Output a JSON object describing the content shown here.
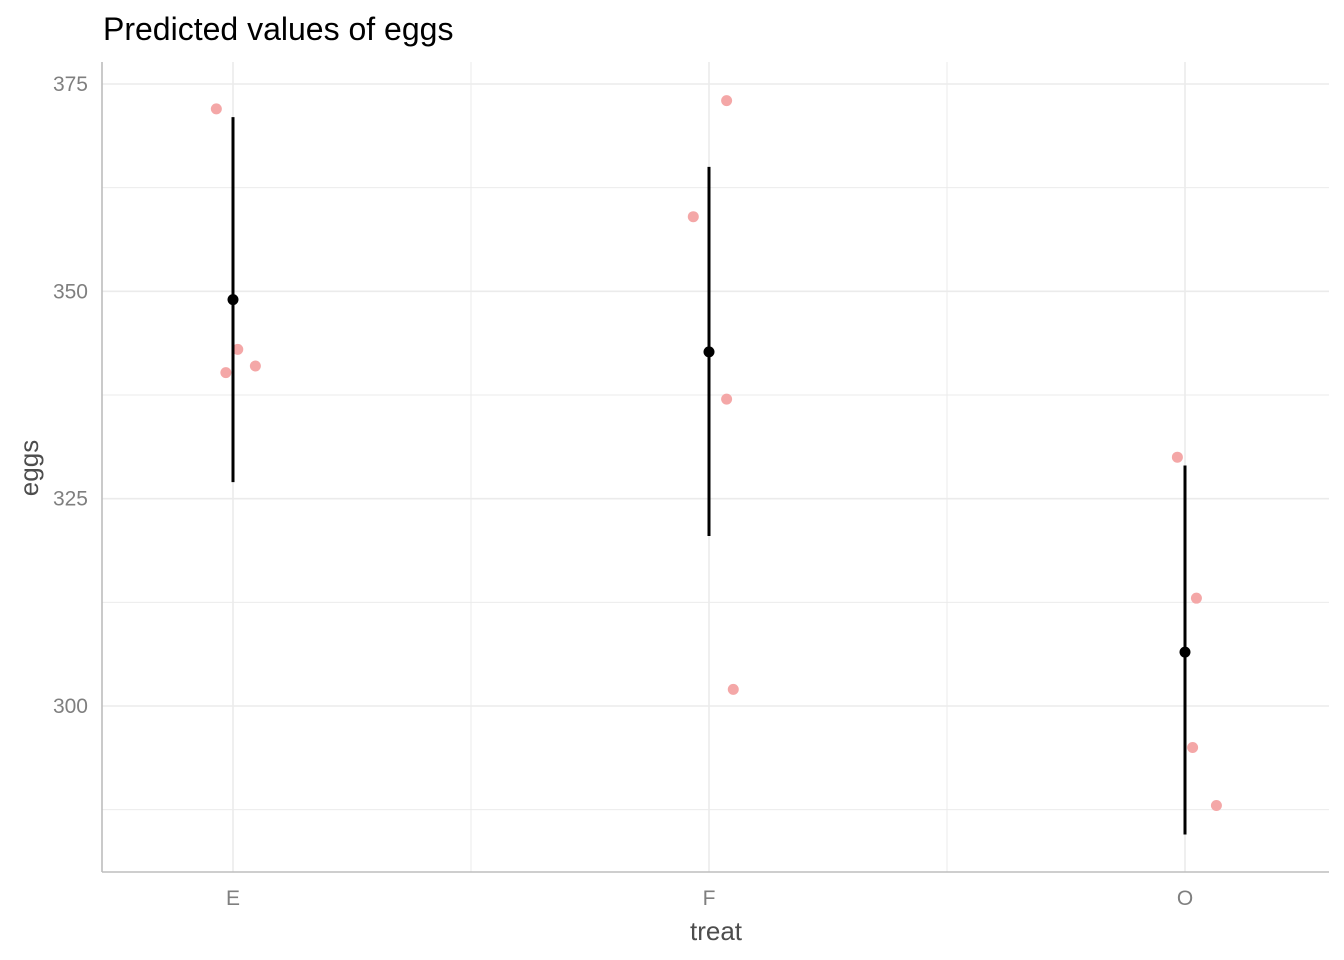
{
  "chart_data": {
    "type": "scatter",
    "title": "Predicted values of eggs",
    "xlabel": "treat",
    "ylabel": "eggs",
    "categories": [
      "E",
      "F",
      "O"
    ],
    "ylim": [
      283,
      378
    ],
    "yticks": [
      300,
      325,
      350,
      375
    ],
    "grid": true,
    "legend": "none",
    "predicted": [
      {
        "x": "E",
        "y": 349,
        "ci_low": 327,
        "ci_high": 371
      },
      {
        "x": "F",
        "y": 342.7,
        "ci_low": 320.5,
        "ci_high": 365
      },
      {
        "x": "O",
        "y": 306.5,
        "ci_low": 284.5,
        "ci_high": 329
      }
    ],
    "observed": [
      {
        "x": "E",
        "jitter": -0.035,
        "y": 372
      },
      {
        "x": "E",
        "jitter": 0.01,
        "y": 343
      },
      {
        "x": "E",
        "jitter": -0.015,
        "y": 340.2
      },
      {
        "x": "E",
        "jitter": 0.047,
        "y": 341
      },
      {
        "x": "F",
        "jitter": 0.037,
        "y": 373
      },
      {
        "x": "F",
        "jitter": -0.033,
        "y": 359
      },
      {
        "x": "F",
        "jitter": 0.037,
        "y": 337
      },
      {
        "x": "F",
        "jitter": 0.051,
        "y": 302
      },
      {
        "x": "O",
        "jitter": -0.016,
        "y": 330
      },
      {
        "x": "O",
        "jitter": 0.024,
        "y": 313
      },
      {
        "x": "O",
        "jitter": 0.016,
        "y": 295
      },
      {
        "x": "O",
        "jitter": 0.066,
        "y": 288
      }
    ],
    "colors": {
      "observed": "#f4a7a7",
      "predicted": "#000000",
      "grid": "#ebebeb",
      "axis": "#bdbdbd"
    }
  }
}
